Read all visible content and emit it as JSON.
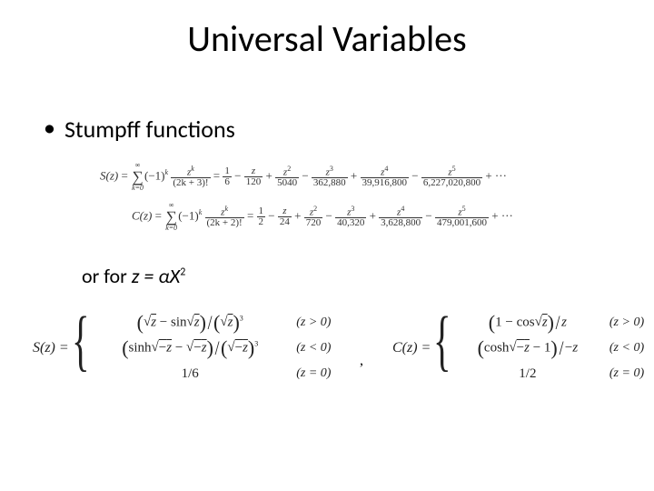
{
  "title": "Universal Variables",
  "bullet1": "Stumpff functions",
  "series": {
    "S": {
      "lhs": "S(z)",
      "sumTop": "∞",
      "sumBot": "k=0",
      "termSign": "(−1)",
      "termSignExp": "k",
      "fracTopBase": "z",
      "fracTopExp": "k",
      "fracBot": "(2k + 3)!",
      "terms": [
        {
          "sign": "=",
          "num": "1",
          "den": "6"
        },
        {
          "sign": "−",
          "num": "z",
          "den": "120"
        },
        {
          "sign": "+",
          "num": "z",
          "exp": "2",
          "den": "5040"
        },
        {
          "sign": "−",
          "num": "z",
          "exp": "3",
          "den": "362,880"
        },
        {
          "sign": "+",
          "num": "z",
          "exp": "4",
          "den": "39,916,800"
        },
        {
          "sign": "−",
          "num": "z",
          "exp": "5",
          "den": "6,227,020,800"
        }
      ],
      "trail": "+ ···"
    },
    "C": {
      "lhs": "C(z)",
      "sumTop": "∞",
      "sumBot": "k=0",
      "termSign": "(−1)",
      "termSignExp": "k",
      "fracTopBase": "z",
      "fracTopExp": "k",
      "fracBot": "(2k + 2)!",
      "terms": [
        {
          "sign": "=",
          "num": "1",
          "den": "2"
        },
        {
          "sign": "−",
          "num": "z",
          "den": "24"
        },
        {
          "sign": "+",
          "num": "z",
          "exp": "2",
          "den": "720"
        },
        {
          "sign": "−",
          "num": "z",
          "exp": "3",
          "den": "40,320"
        },
        {
          "sign": "+",
          "num": "z",
          "exp": "4",
          "den": "3,628,800"
        },
        {
          "sign": "−",
          "num": "z",
          "exp": "5",
          "den": "479,001,600"
        }
      ],
      "trail": "+ ···"
    }
  },
  "orfor": {
    "plain": "or for ",
    "ital": "z = αX",
    "exp": "2"
  },
  "piecewise": {
    "S": {
      "lhs": "S(z) =",
      "cases": [
        {
          "exprHTML": "<span class='paren-big'>(</span><span class='sqrt'></span><span class='ovl it'>z</span> − sin<span class='sqrt'></span><span class='ovl it'>z</span><span class='paren-big'>)</span><span class='bigslash'>/</span><span class='paren-big'>(</span><span class='sqrt'></span><span class='ovl it'>z</span><span class='paren-big'>)</span><span class='sup'>3</span>",
          "cond": "(z > 0)"
        },
        {
          "exprHTML": "<span class='paren-big'>(</span>sinh<span class='sqrt'></span><span class='ovl'>−<span class='it'>z</span></span> − <span class='sqrt'></span><span class='ovl'>−<span class='it'>z</span></span><span class='paren-big'>)</span><span class='bigslash'>/</span><span class='paren-big'>(</span><span class='sqrt'></span><span class='ovl'>−<span class='it'>z</span></span><span class='paren-big'>)</span><span class='sup'>3</span>",
          "cond": "(z < 0)"
        },
        {
          "exprHTML": "1/6",
          "cond": "(z = 0)"
        }
      ]
    },
    "C": {
      "lhs": "C(z) =",
      "cases": [
        {
          "exprHTML": "<span class='paren-big'>(</span>1 − cos<span class='sqrt'></span><span class='ovl it'>z</span><span class='paren-big'>)</span><span class='bigslash'>/</span><span class='it'>z</span>",
          "cond": "(z > 0)"
        },
        {
          "exprHTML": "<span class='paren-big'>(</span>cosh<span class='sqrt'></span><span class='ovl'>−<span class='it'>z</span></span> − 1<span class='paren-big'>)</span><span class='bigslash'>/</span>−<span class='it'>z</span>",
          "cond": "(z < 0)"
        },
        {
          "exprHTML": "1/2",
          "cond": "(z = 0)"
        }
      ]
    }
  },
  "commaSep": ","
}
